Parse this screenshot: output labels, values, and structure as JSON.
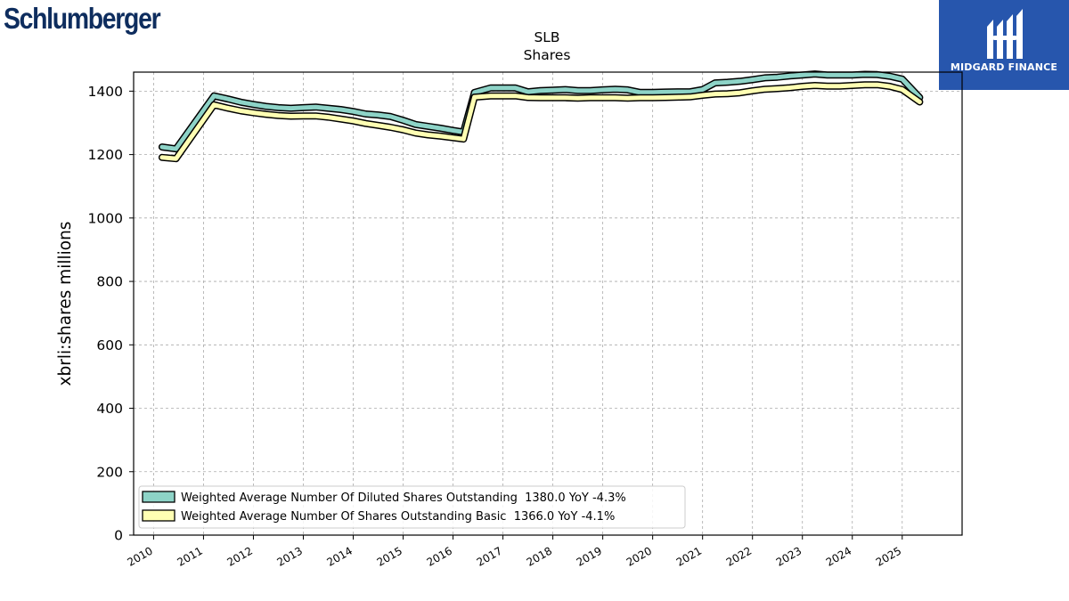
{
  "header": {
    "company_logo_text": "Schlumberger",
    "brand_name": "MIDGARD FINANCE",
    "brand_color": "#2756ad"
  },
  "chart_data": {
    "type": "area",
    "title": "SLB",
    "subtitle": "Shares",
    "xlabel": "",
    "ylabel": "xbrli:shares millions",
    "ylim": [
      0,
      1460
    ],
    "xlim": [
      2009.6,
      2026.2
    ],
    "yticks": [
      0,
      200,
      400,
      600,
      800,
      1000,
      1200,
      1400
    ],
    "xticks": [
      2010,
      2011,
      2012,
      2013,
      2014,
      2015,
      2016,
      2017,
      2018,
      2019,
      2020,
      2021,
      2022,
      2023,
      2024,
      2025
    ],
    "grid": true,
    "legend_position": "lower-left",
    "series": [
      {
        "name": "Weighted Average Number Of Diluted Shares Outstanding",
        "legend_label": "Weighted Average Number Of Diluted Shares Outstanding  1380.0 YoY -4.3%",
        "color": "#8dd3c7",
        "x": [
          2010.17,
          2010.45,
          2011.21,
          2011.5,
          2011.75,
          2012.0,
          2012.25,
          2012.5,
          2012.75,
          2013.0,
          2013.25,
          2013.5,
          2013.75,
          2014.0,
          2014.25,
          2014.5,
          2014.75,
          2015.0,
          2015.25,
          2015.5,
          2015.75,
          2016.0,
          2016.21,
          2016.43,
          2016.75,
          2017.0,
          2017.25,
          2017.5,
          2017.75,
          2018.0,
          2018.25,
          2018.5,
          2018.75,
          2019.0,
          2019.25,
          2019.5,
          2019.75,
          2020.0,
          2020.25,
          2020.5,
          2020.75,
          2021.0,
          2021.25,
          2021.5,
          2021.75,
          2022.0,
          2022.25,
          2022.5,
          2022.75,
          2023.0,
          2023.25,
          2023.5,
          2023.75,
          2024.0,
          2024.25,
          2024.5,
          2024.75,
          2025.0,
          2025.35
        ],
        "y": [
          1224,
          1218,
          1385,
          1375,
          1365,
          1358,
          1352,
          1348,
          1346,
          1348,
          1350,
          1346,
          1342,
          1336,
          1328,
          1325,
          1320,
          1308,
          1295,
          1289,
          1283,
          1276,
          1271,
          1396,
          1410,
          1410,
          1410,
          1398,
          1402,
          1403,
          1405,
          1402,
          1402,
          1404,
          1406,
          1404,
          1396,
          1396,
          1397,
          1398,
          1398,
          1405,
          1426,
          1428,
          1431,
          1436,
          1442,
          1444,
          1448,
          1451,
          1454,
          1451,
          1451,
          1451,
          1453,
          1452,
          1447,
          1438,
          1380
        ]
      },
      {
        "name": "Weighted Average Number Of Shares Outstanding Basic",
        "legend_label": "Weighted Average Number Of Shares Outstanding Basic  1366.0 YoY -4.1%",
        "color": "#ffffb3",
        "x": [
          2010.17,
          2010.45,
          2011.21,
          2011.5,
          2011.75,
          2012.0,
          2012.25,
          2012.5,
          2012.75,
          2013.0,
          2013.25,
          2013.5,
          2013.75,
          2014.0,
          2014.25,
          2014.5,
          2014.75,
          2015.0,
          2015.25,
          2015.5,
          2015.75,
          2016.0,
          2016.21,
          2016.43,
          2016.75,
          2017.0,
          2017.25,
          2017.5,
          2017.75,
          2018.0,
          2018.25,
          2018.5,
          2018.75,
          2019.0,
          2019.25,
          2019.5,
          2019.75,
          2020.0,
          2020.25,
          2020.5,
          2020.75,
          2021.0,
          2021.25,
          2021.5,
          2021.75,
          2022.0,
          2022.25,
          2022.5,
          2022.75,
          2023.0,
          2023.25,
          2023.5,
          2023.75,
          2024.0,
          2024.25,
          2024.5,
          2024.75,
          2025.0,
          2025.35
        ],
        "y": [
          1191,
          1187,
          1357,
          1346,
          1338,
          1332,
          1327,
          1323,
          1321,
          1322,
          1322,
          1318,
          1312,
          1306,
          1298,
          1292,
          1286,
          1278,
          1268,
          1262,
          1258,
          1253,
          1249,
          1381,
          1385,
          1385,
          1385,
          1380,
          1379,
          1379,
          1379,
          1378,
          1379,
          1379,
          1379,
          1378,
          1379,
          1379,
          1380,
          1381,
          1382,
          1387,
          1391,
          1392,
          1395,
          1401,
          1406,
          1408,
          1411,
          1415,
          1418,
          1416,
          1416,
          1418,
          1420,
          1420,
          1415,
          1405,
          1366
        ]
      }
    ]
  }
}
